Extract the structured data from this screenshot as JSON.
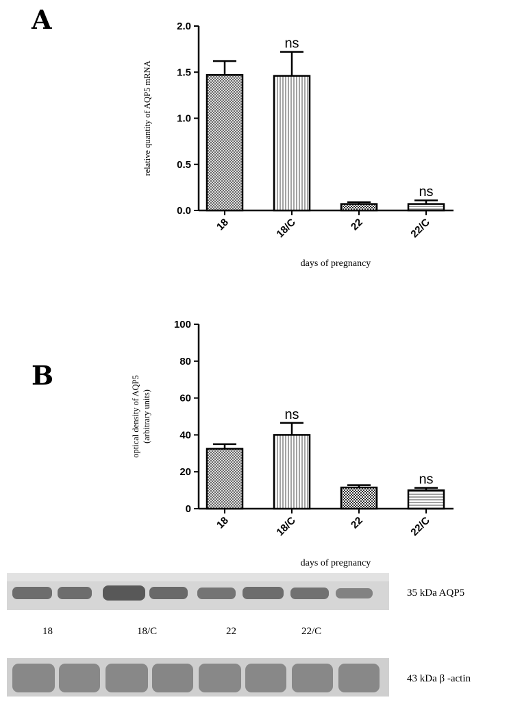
{
  "panel_a_letter": "A",
  "panel_b_letter": "B",
  "chart_data": [
    {
      "type": "bar",
      "categories": [
        "18",
        "18/C",
        "22",
        "22/C"
      ],
      "values": [
        1.47,
        1.46,
        0.07,
        0.07
      ],
      "errors": [
        0.15,
        0.26,
        0.02,
        0.04
      ],
      "annotations": [
        "",
        "ns",
        "",
        "ns"
      ],
      "ylabel": "relative quantity of AQP5 mRNA",
      "xlabel": "days of pregnancy",
      "ylim": [
        0,
        2.0
      ],
      "yticks": [
        "0.0",
        "0.5",
        "1.0",
        "1.5",
        "2.0"
      ],
      "ytick_values": [
        0,
        0.5,
        1.0,
        1.5,
        2.0
      ],
      "bar_patterns": [
        "crosshatch",
        "vertical",
        "checker",
        "horizontal"
      ]
    },
    {
      "type": "bar",
      "categories": [
        "18",
        "18/C",
        "22",
        "22/C"
      ],
      "values": [
        32.5,
        40.0,
        11.5,
        10.0
      ],
      "errors": [
        2.5,
        6.5,
        1.3,
        1.3
      ],
      "annotations": [
        "",
        "ns",
        "",
        "ns"
      ],
      "ylabel": "optical density of AQP5",
      "ylabel2": "(arbitrary units)",
      "xlabel": "days of pregnancy",
      "ylim": [
        0,
        100
      ],
      "yticks": [
        "0",
        "20",
        "40",
        "60",
        "80",
        "100"
      ],
      "ytick_values": [
        0,
        20,
        40,
        60,
        80,
        100
      ],
      "bar_patterns": [
        "crosshatch",
        "vertical",
        "checker",
        "horizontal"
      ]
    }
  ],
  "blot": {
    "top_label": "35 kDa AQP5",
    "bottom_label": "43 kDa β -actin",
    "lanes": [
      "18",
      "18/C",
      "22",
      "22/C"
    ]
  }
}
